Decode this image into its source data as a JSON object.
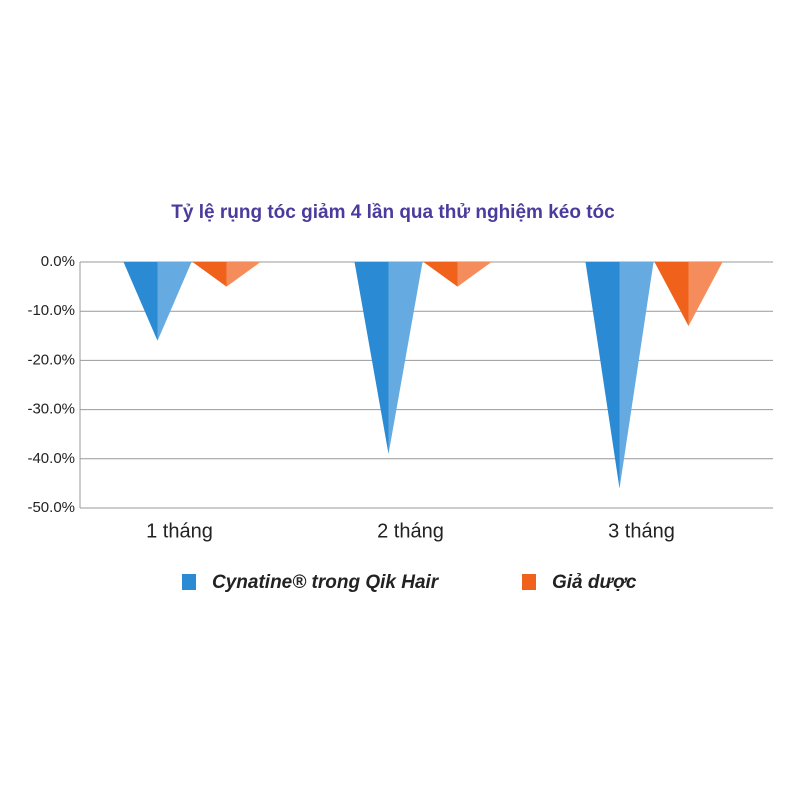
{
  "chart_data": {
    "type": "cone-bar",
    "title": "Tỷ lệ rụng tóc giảm 4 lần qua thử nghiệm kéo tóc",
    "categories": [
      "1 tháng",
      "2 tháng",
      "3 tháng"
    ],
    "series": [
      {
        "name": "Cynatine® trong Qik Hair",
        "color": "#2a8ad4",
        "values": [
          -16,
          -39,
          -46
        ]
      },
      {
        "name": "Giả dược",
        "color": "#f0621c",
        "values": [
          -5,
          -5,
          -13
        ]
      }
    ],
    "ylim": [
      -50,
      0
    ],
    "yticks": [
      {
        "value": 0,
        "label": "0.0%"
      },
      {
        "value": -10,
        "label": "-10.0%"
      },
      {
        "value": -20,
        "label": "-20.0%"
      },
      {
        "value": -30,
        "label": "-30.0%"
      },
      {
        "value": -40,
        "label": "-40.0%"
      },
      {
        "value": -50,
        "label": "-50.0%"
      }
    ],
    "grid": true
  }
}
